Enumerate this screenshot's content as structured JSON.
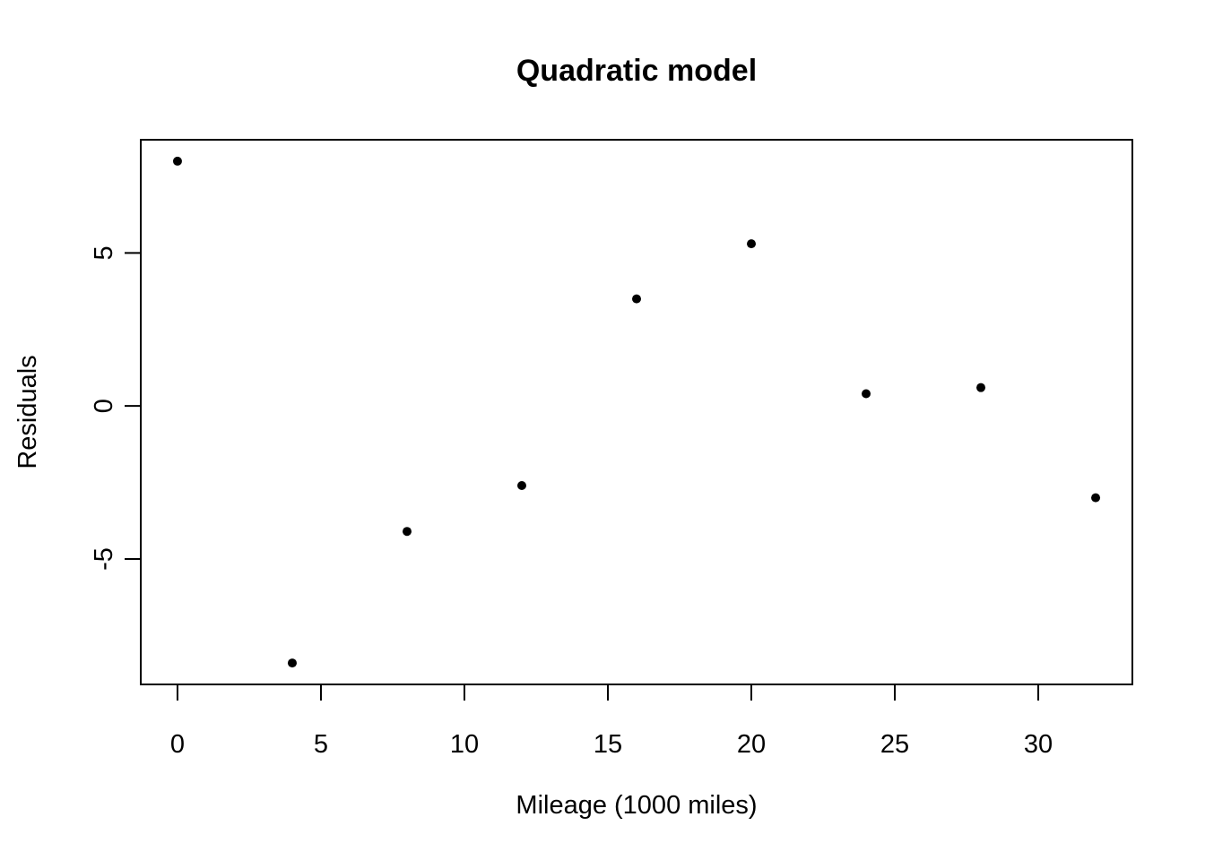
{
  "chart_data": {
    "type": "scatter",
    "title": "Quadratic model",
    "xlabel": "Mileage (1000 miles)",
    "ylabel": "Residuals",
    "x": [
      0,
      4,
      8,
      12,
      16,
      20,
      24,
      28,
      32
    ],
    "y": [
      8.0,
      -8.4,
      -4.1,
      -2.6,
      3.5,
      5.3,
      0.4,
      0.6,
      -3.0
    ],
    "x_ticks": [
      0,
      5,
      10,
      15,
      20,
      25,
      30
    ],
    "y_ticks": [
      -5,
      0,
      5
    ],
    "xlim": [
      -1.28,
      33.28
    ],
    "ylim": [
      -9.1,
      8.7
    ],
    "grid": false,
    "point_color": "#000000",
    "frame_color": "#000000",
    "background_color": "#ffffff",
    "point_radius": 5
  }
}
